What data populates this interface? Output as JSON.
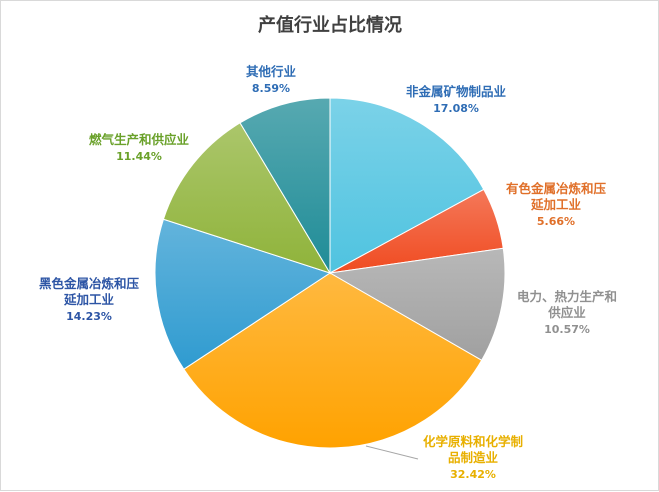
{
  "chart_data": {
    "type": "pie",
    "title": "产值行业占比情况",
    "slices": [
      {
        "label": "非金属矿物制品业",
        "label_lines": [
          "非金属矿物制品业"
        ],
        "value": 17.08,
        "pct_text": "17.08%",
        "color": "#4fc3e0",
        "label_color": "#2f6db5"
      },
      {
        "label": "有色金属冶炼和压延加工业",
        "label_lines": [
          "有色金属冶炼和压",
          "延加工业"
        ],
        "value": 5.66,
        "pct_text": "5.66%",
        "color": "#f04b21",
        "label_color": "#e0702a"
      },
      {
        "label": "电力、热力生产和供应业",
        "label_lines": [
          "电力、热力生产和",
          "供应业"
        ],
        "value": 10.57,
        "pct_text": "10.57%",
        "color": "#a0a0a0",
        "label_color": "#909090"
      },
      {
        "label": "化学原料和化学制品制造业",
        "label_lines": [
          "化学原料和化学制",
          "品制造业"
        ],
        "value": 32.42,
        "pct_text": "32.42%",
        "color": "#ffa200",
        "label_color": "#e8b000"
      },
      {
        "label": "黑色金属冶炼和压延加工业",
        "label_lines": [
          "黑色金属冶炼和压",
          "延加工业"
        ],
        "value": 14.23,
        "pct_text": "14.23%",
        "color": "#2f9bd0",
        "label_color": "#2d55a5"
      },
      {
        "label": "燃气生产和供应业",
        "label_lines": [
          "燃气生产和供应业"
        ],
        "value": 11.44,
        "pct_text": "11.44%",
        "color": "#8fb33a",
        "label_color": "#6aa12a"
      },
      {
        "label": "其他行业",
        "label_lines": [
          "其他行业"
        ],
        "value": 8.59,
        "pct_text": "8.59%",
        "color": "#1f8c97",
        "label_color": "#2f6db5"
      }
    ]
  }
}
